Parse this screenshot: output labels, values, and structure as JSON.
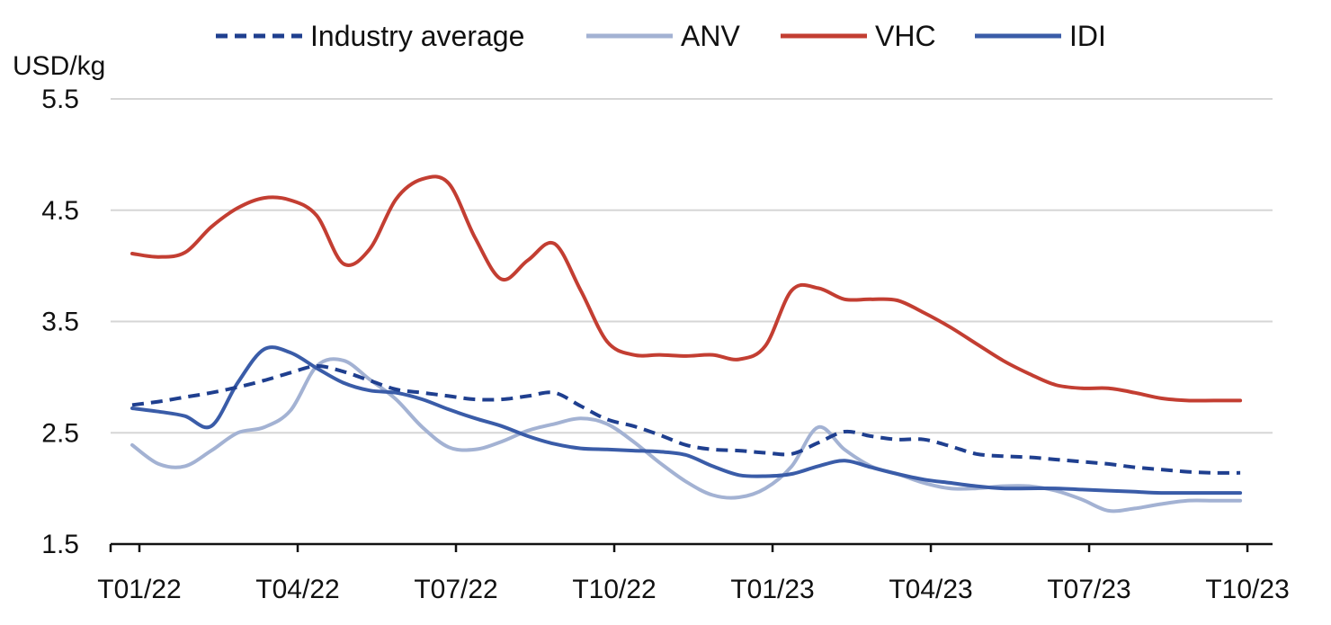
{
  "chart_data": {
    "type": "line",
    "unit_label": "USD/kg",
    "ylim": [
      1.5,
      5.5
    ],
    "yticks": [
      "5.5",
      "4.5",
      "3.5",
      "2.5",
      "1.5"
    ],
    "ytick_values": [
      5.5,
      4.5,
      3.5,
      2.5,
      1.5
    ],
    "xticks": [
      "T01/22",
      "T04/22",
      "T07/22",
      "T10/22",
      "T01/23",
      "T04/23",
      "T07/23",
      "T10/23"
    ],
    "x_months": [
      "T01/22",
      "T02/22",
      "T03/22",
      "T04/22",
      "T05/22",
      "T06/22",
      "T07/22",
      "T08/22",
      "T09/22",
      "T10/22",
      "T11/22",
      "T12/22",
      "T01/23",
      "T02/23",
      "T03/23",
      "T04/23",
      "T05/23",
      "T06/23",
      "T07/23",
      "T08/23",
      "T09/23",
      "T10/23"
    ],
    "grid": true,
    "legend_position": "top",
    "series": [
      {
        "name": "Industry average",
        "color": "#1f3f8f",
        "style": "dashed",
        "x": [
          1,
          1.5,
          2,
          2.5,
          3,
          3.5,
          4,
          4.5,
          5,
          5.5,
          6,
          6.5,
          7,
          7.5,
          8,
          8.5,
          9,
          9.5,
          10,
          10.5,
          11,
          11.5,
          12,
          12.5,
          13,
          13.5,
          14,
          14.5,
          15,
          15.5,
          16,
          16.5,
          17,
          17.5,
          18,
          18.5,
          19,
          19.5,
          20,
          20.5,
          21,
          21.5,
          22
        ],
        "values": [
          2.75,
          2.78,
          2.82,
          2.86,
          2.91,
          2.97,
          3.04,
          3.1,
          3.05,
          2.97,
          2.89,
          2.86,
          2.83,
          2.8,
          2.8,
          2.83,
          2.86,
          2.74,
          2.62,
          2.56,
          2.48,
          2.39,
          2.35,
          2.34,
          2.32,
          2.31,
          2.41,
          2.51,
          2.47,
          2.44,
          2.44,
          2.38,
          2.31,
          2.29,
          2.28,
          2.26,
          2.24,
          2.22,
          2.19,
          2.17,
          2.15,
          2.14,
          2.14
        ]
      },
      {
        "name": "ANV",
        "color": "#a3b2d3",
        "style": "solid",
        "x": [
          1,
          1.5,
          2,
          2.5,
          3,
          3.5,
          4,
          4.5,
          5,
          5.5,
          6,
          6.5,
          7,
          7.5,
          8,
          8.5,
          9,
          9.5,
          10,
          10.5,
          11,
          11.5,
          12,
          12.5,
          13,
          13.5,
          14,
          14.5,
          15,
          15.5,
          16,
          16.5,
          17,
          17.5,
          18,
          18.5,
          19,
          19.5,
          20,
          20.5,
          21,
          21.5,
          22
        ],
        "values": [
          2.39,
          2.22,
          2.2,
          2.34,
          2.5,
          2.55,
          2.7,
          3.1,
          3.15,
          2.98,
          2.8,
          2.55,
          2.37,
          2.35,
          2.42,
          2.52,
          2.58,
          2.63,
          2.58,
          2.42,
          2.23,
          2.06,
          1.94,
          1.92,
          2.0,
          2.2,
          2.55,
          2.35,
          2.2,
          2.13,
          2.05,
          2.0,
          2.0,
          2.02,
          2.02,
          1.98,
          1.9,
          1.8,
          1.82,
          1.86,
          1.89,
          1.89,
          1.89
        ]
      },
      {
        "name": "VHC",
        "color": "#c33e32",
        "style": "solid",
        "x": [
          1,
          1.5,
          2,
          2.5,
          3,
          3.5,
          4,
          4.5,
          5,
          5.5,
          6,
          6.5,
          7,
          7.5,
          8,
          8.5,
          9,
          9.5,
          10,
          10.5,
          11,
          11.5,
          12,
          12.5,
          13,
          13.5,
          14,
          14.5,
          15,
          15.5,
          16,
          16.5,
          17,
          17.5,
          18,
          18.5,
          19,
          19.5,
          20,
          20.5,
          21,
          21.5,
          22
        ],
        "values": [
          4.11,
          4.08,
          4.12,
          4.35,
          4.52,
          4.61,
          4.59,
          4.45,
          4.02,
          4.15,
          4.6,
          4.78,
          4.74,
          4.25,
          3.88,
          4.05,
          4.2,
          3.78,
          3.32,
          3.2,
          3.2,
          3.19,
          3.2,
          3.16,
          3.28,
          3.78,
          3.8,
          3.7,
          3.7,
          3.69,
          3.58,
          3.45,
          3.3,
          3.15,
          3.03,
          2.93,
          2.9,
          2.9,
          2.86,
          2.81,
          2.79,
          2.79,
          2.79
        ]
      },
      {
        "name": "IDI",
        "color": "#3a5ca8",
        "style": "solid",
        "x": [
          1,
          1.5,
          2,
          2.5,
          3,
          3.5,
          4,
          4.5,
          5,
          5.5,
          6,
          6.5,
          7,
          7.5,
          8,
          8.5,
          9,
          9.5,
          10,
          10.5,
          11,
          11.5,
          12,
          12.5,
          13,
          13.5,
          14,
          14.5,
          15,
          15.5,
          16,
          16.5,
          17,
          17.5,
          18,
          18.5,
          19,
          19.5,
          20,
          20.5,
          21,
          21.5,
          22
        ],
        "values": [
          2.72,
          2.69,
          2.65,
          2.56,
          2.95,
          3.25,
          3.22,
          3.08,
          2.95,
          2.88,
          2.86,
          2.8,
          2.71,
          2.63,
          2.56,
          2.47,
          2.4,
          2.36,
          2.35,
          2.34,
          2.33,
          2.3,
          2.2,
          2.12,
          2.11,
          2.13,
          2.2,
          2.25,
          2.19,
          2.13,
          2.08,
          2.05,
          2.02,
          2.0,
          2.0,
          2.0,
          1.99,
          1.98,
          1.97,
          1.96,
          1.96,
          1.96,
          1.96
        ]
      }
    ]
  }
}
